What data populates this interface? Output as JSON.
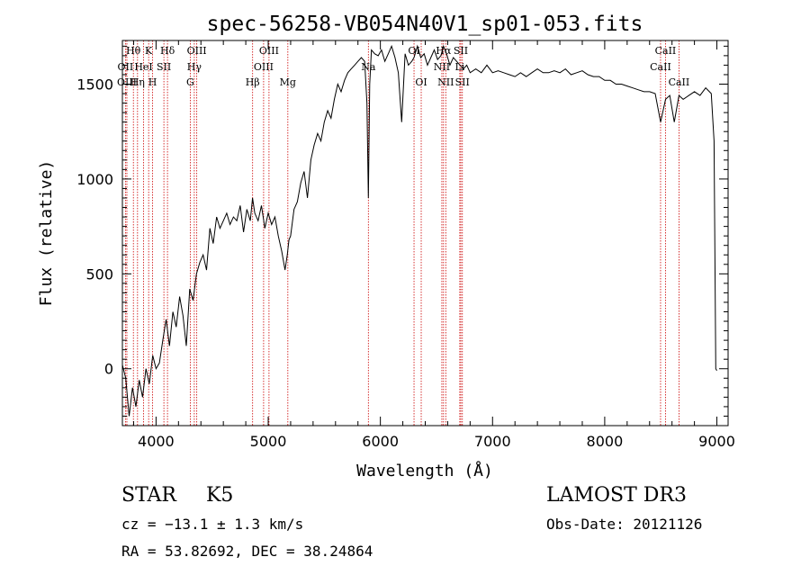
{
  "chart_data": {
    "type": "line",
    "title": "spec-56258-VB054N40V1_sp01-053.fits",
    "xlabel": "Wavelength (Å)",
    "ylabel": "Flux (relative)",
    "xlim": [
      3700,
      9100
    ],
    "ylim": [
      -300,
      1730
    ],
    "x_ticks": [
      4000,
      5000,
      6000,
      7000,
      8000,
      9000
    ],
    "x_tick_labels": [
      "4000",
      "5000",
      "6000",
      "7000",
      "8000",
      "9000"
    ],
    "y_ticks": [
      0,
      500,
      1000,
      1500
    ],
    "y_tick_labels": [
      "0",
      "500",
      "1000",
      "1500"
    ],
    "line_color": "#000000",
    "marker_color": "#cc0000",
    "series": [
      {
        "name": "spectrum",
        "x": [
          3700,
          3730,
          3760,
          3790,
          3820,
          3850,
          3880,
          3910,
          3940,
          3970,
          4000,
          4030,
          4060,
          4090,
          4120,
          4150,
          4180,
          4210,
          4240,
          4270,
          4300,
          4330,
          4360,
          4390,
          4420,
          4450,
          4480,
          4510,
          4540,
          4570,
          4600,
          4630,
          4660,
          4690,
          4720,
          4750,
          4780,
          4810,
          4840,
          4860,
          4880,
          4910,
          4940,
          4970,
          5000,
          5030,
          5060,
          5090,
          5120,
          5150,
          5170,
          5185,
          5200,
          5230,
          5260,
          5290,
          5320,
          5350,
          5380,
          5410,
          5440,
          5470,
          5500,
          5530,
          5560,
          5590,
          5620,
          5650,
          5680,
          5710,
          5740,
          5770,
          5800,
          5830,
          5860,
          5880,
          5893,
          5905,
          5920,
          5950,
          5980,
          6010,
          6040,
          6070,
          6100,
          6130,
          6160,
          6190,
          6220,
          6250,
          6280,
          6300,
          6330,
          6360,
          6390,
          6420,
          6450,
          6480,
          6510,
          6540,
          6563,
          6590,
          6620,
          6650,
          6680,
          6710,
          6740,
          6770,
          6800,
          6850,
          6900,
          6950,
          7000,
          7050,
          7100,
          7150,
          7200,
          7250,
          7300,
          7350,
          7400,
          7450,
          7500,
          7550,
          7600,
          7650,
          7700,
          7750,
          7800,
          7850,
          7900,
          7950,
          8000,
          8050,
          8100,
          8150,
          8200,
          8250,
          8300,
          8350,
          8400,
          8450,
          8498,
          8542,
          8580,
          8620,
          8662,
          8700,
          8750,
          8800,
          8850,
          8900,
          8950,
          8975,
          8990,
          9000
        ],
        "y": [
          20,
          -50,
          -250,
          -100,
          -200,
          -60,
          -150,
          0,
          -80,
          70,
          0,
          30,
          150,
          260,
          120,
          300,
          220,
          380,
          280,
          120,
          420,
          360,
          500,
          560,
          600,
          520,
          740,
          660,
          800,
          740,
          780,
          820,
          760,
          800,
          780,
          860,
          720,
          840,
          780,
          900,
          820,
          780,
          860,
          740,
          820,
          760,
          800,
          700,
          620,
          520,
          600,
          680,
          700,
          840,
          880,
          980,
          1040,
          900,
          1100,
          1180,
          1240,
          1200,
          1300,
          1360,
          1320,
          1420,
          1500,
          1460,
          1520,
          1560,
          1580,
          1600,
          1620,
          1640,
          1620,
          1400,
          900,
          1500,
          1680,
          1660,
          1650,
          1680,
          1620,
          1660,
          1700,
          1640,
          1560,
          1300,
          1660,
          1600,
          1620,
          1640,
          1700,
          1640,
          1660,
          1600,
          1640,
          1680,
          1630,
          1650,
          1700,
          1660,
          1600,
          1640,
          1620,
          1600,
          1580,
          1600,
          1560,
          1580,
          1560,
          1600,
          1560,
          1570,
          1560,
          1550,
          1540,
          1560,
          1540,
          1560,
          1580,
          1560,
          1560,
          1570,
          1560,
          1580,
          1550,
          1560,
          1570,
          1550,
          1540,
          1540,
          1520,
          1520,
          1500,
          1500,
          1490,
          1480,
          1470,
          1460,
          1460,
          1450,
          1300,
          1420,
          1440,
          1300,
          1440,
          1420,
          1440,
          1460,
          1440,
          1480,
          1450,
          1200,
          0,
          -10
        ]
      }
    ],
    "lines_marked": [
      {
        "label": "Hθ",
        "x": 3798,
        "row": 1
      },
      {
        "label": "OII",
        "x": 3727,
        "row": 2
      },
      {
        "label": "OIII",
        "x": 3740,
        "row": 3
      },
      {
        "label": "K",
        "x": 3934,
        "row": 1
      },
      {
        "label": "HeI",
        "x": 3889,
        "row": 2
      },
      {
        "label": "Hη",
        "x": 3835,
        "row": 3
      },
      {
        "label": "Hδ",
        "x": 4102,
        "row": 1
      },
      {
        "label": "SII",
        "x": 4070,
        "row": 2
      },
      {
        "label": "H",
        "x": 3969,
        "row": 3
      },
      {
        "label": "OIII",
        "x": 4363,
        "row": 1
      },
      {
        "label": "Hγ",
        "x": 4341,
        "row": 2
      },
      {
        "label": "G",
        "x": 4305,
        "row": 3
      },
      {
        "label": "Hβ",
        "x": 4861,
        "row": 3
      },
      {
        "label": "OIII",
        "x": 5007,
        "row": 1
      },
      {
        "label": "OIII",
        "x": 4959,
        "row": 2
      },
      {
        "label": "Mg",
        "x": 5175,
        "row": 3
      },
      {
        "label": "Na",
        "x": 5893,
        "row": 2
      },
      {
        "label": "OI",
        "x": 6300,
        "row": 1
      },
      {
        "label": "OI",
        "x": 6364,
        "row": 3
      },
      {
        "label": "Hα",
        "x": 6563,
        "row": 1
      },
      {
        "label": "NII",
        "x": 6548,
        "row": 2
      },
      {
        "label": "NII",
        "x": 6583,
        "row": 3
      },
      {
        "label": "SII",
        "x": 6717,
        "row": 1
      },
      {
        "label": "Li",
        "x": 6708,
        "row": 2
      },
      {
        "label": "SII",
        "x": 6731,
        "row": 3
      },
      {
        "label": "CaII",
        "x": 8542,
        "row": 1
      },
      {
        "label": "CaII",
        "x": 8498,
        "row": 2
      },
      {
        "label": "CaII",
        "x": 8662,
        "row": 3
      }
    ]
  },
  "info": {
    "object_class": "STAR",
    "subclass": "K5",
    "survey": "LAMOST DR3",
    "redshift_line": "cz = −13.1 ± 1.3 km/s",
    "obs_date_line": "Obs-Date: 20121126",
    "coords_line": "RA =  53.82692, DEC =  38.24864"
  }
}
